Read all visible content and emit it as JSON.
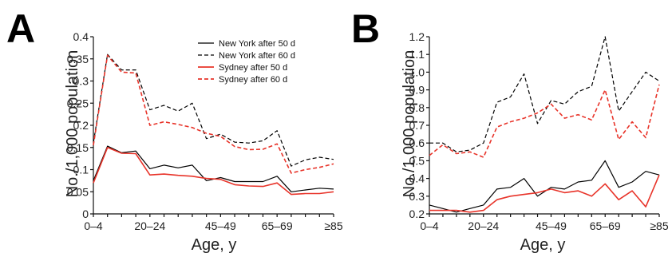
{
  "colors": {
    "new_york": "#000000",
    "sydney": "#e8342a"
  },
  "chart_data": [
    {
      "type": "line",
      "panel_label": "A",
      "xlabel": "Age, y",
      "ylabel": "No./1,000 population",
      "x_tick_labels": [
        "0–4",
        "20–24",
        "45–49",
        "65–69",
        "≥85"
      ],
      "x_tick_positions": [
        0,
        4,
        9,
        13,
        17
      ],
      "ylim": [
        0,
        0.4
      ],
      "y_ticks": [
        "0",
        "0.05",
        "0.1",
        "0.15",
        "0.2",
        "0.25",
        "0.3",
        "0.35",
        "0.4"
      ],
      "y_tick_values": [
        0,
        0.05,
        0.1,
        0.15,
        0.2,
        0.25,
        0.3,
        0.35,
        0.4
      ],
      "legend_placement": "top-right",
      "series": [
        {
          "name": "New York after 50 d",
          "color": "#000000",
          "dash": "solid",
          "values": [
            0.075,
            0.153,
            0.138,
            0.142,
            0.102,
            0.11,
            0.104,
            0.11,
            0.075,
            0.082,
            0.073,
            0.073,
            0.073,
            0.085,
            0.05,
            0.054,
            0.058,
            0.056
          ]
        },
        {
          "name": "New York after 60 d",
          "color": "#000000",
          "dash": "dashed",
          "values": [
            0.16,
            0.36,
            0.325,
            0.325,
            0.235,
            0.245,
            0.232,
            0.25,
            0.17,
            0.18,
            0.162,
            0.16,
            0.165,
            0.188,
            0.108,
            0.122,
            0.128,
            0.123
          ]
        },
        {
          "name": "Sydney after 50 d",
          "color": "#e8342a",
          "dash": "solid",
          "values": [
            0.07,
            0.15,
            0.137,
            0.136,
            0.088,
            0.09,
            0.087,
            0.085,
            0.08,
            0.078,
            0.066,
            0.063,
            0.062,
            0.07,
            0.044,
            0.046,
            0.046,
            0.05
          ]
        },
        {
          "name": "Sydney after 60 d",
          "color": "#e8342a",
          "dash": "dashed",
          "values": [
            0.155,
            0.358,
            0.32,
            0.318,
            0.2,
            0.208,
            0.202,
            0.195,
            0.182,
            0.175,
            0.152,
            0.145,
            0.146,
            0.158,
            0.092,
            0.1,
            0.105,
            0.113
          ]
        }
      ]
    },
    {
      "type": "line",
      "panel_label": "B",
      "xlabel": "Age, y",
      "ylabel": "No./1,000 population",
      "x_tick_labels": [
        "0–4",
        "20–24",
        "45–49",
        "65–69",
        "≥85"
      ],
      "x_tick_positions": [
        0,
        4,
        9,
        13,
        17
      ],
      "ylim": [
        0.2,
        1.2
      ],
      "y_ticks": [
        "0.2",
        "0.3",
        "0.4",
        "0.5",
        "0.6",
        "0.7",
        "0.8",
        "0.9",
        "1.0",
        "1.1",
        "1.2"
      ],
      "y_tick_values": [
        0.2,
        0.3,
        0.4,
        0.5,
        0.6,
        0.7,
        0.8,
        0.9,
        1.0,
        1.1,
        1.2
      ],
      "series": [
        {
          "name": "New York after 50 d",
          "color": "#000000",
          "dash": "solid",
          "values": [
            0.25,
            0.23,
            0.21,
            0.23,
            0.25,
            0.34,
            0.35,
            0.4,
            0.3,
            0.35,
            0.34,
            0.38,
            0.39,
            0.5,
            0.35,
            0.38,
            0.44,
            0.42
          ]
        },
        {
          "name": "New York after 60 d",
          "color": "#000000",
          "dash": "dashed",
          "values": [
            0.6,
            0.6,
            0.55,
            0.56,
            0.6,
            0.83,
            0.86,
            0.99,
            0.71,
            0.84,
            0.82,
            0.89,
            0.92,
            1.2,
            0.78,
            0.89,
            1.0,
            0.95
          ]
        },
        {
          "name": "Sydney after 50 d",
          "color": "#e8342a",
          "dash": "solid",
          "values": [
            0.22,
            0.22,
            0.22,
            0.21,
            0.22,
            0.28,
            0.3,
            0.31,
            0.32,
            0.34,
            0.32,
            0.33,
            0.3,
            0.37,
            0.28,
            0.33,
            0.24,
            0.42
          ]
        },
        {
          "name": "Sydney after 60 d",
          "color": "#e8342a",
          "dash": "dashed",
          "values": [
            0.53,
            0.59,
            0.54,
            0.55,
            0.52,
            0.69,
            0.72,
            0.74,
            0.77,
            0.82,
            0.74,
            0.76,
            0.73,
            0.9,
            0.62,
            0.72,
            0.63,
            0.93
          ]
        }
      ]
    }
  ]
}
